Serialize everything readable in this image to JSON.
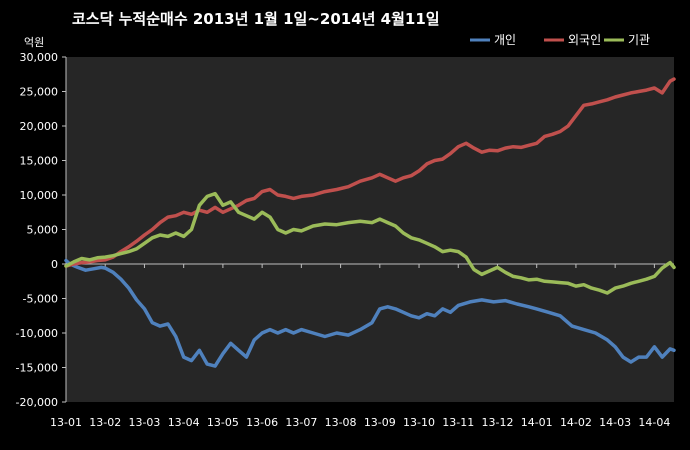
{
  "chart_data": {
    "type": "line",
    "title": "코스닥  누적순매수 2013년 1월 1일~2014년 4월11일",
    "ylabel": "억원",
    "xlabel": "",
    "ylim": [
      -20000,
      30000
    ],
    "yticks": [
      30000,
      25000,
      20000,
      15000,
      10000,
      5000,
      0,
      -5000,
      -10000,
      -15000,
      -20000
    ],
    "ytick_labels": [
      "30,000",
      "25,000",
      "20,000",
      "15,000",
      "10,000",
      "5,000",
      "0",
      "-5,000",
      "-10,000",
      "-15,000",
      "-20,000"
    ],
    "xlim": [
      0,
      15.5
    ],
    "xticks": [
      0,
      1,
      2,
      3,
      4,
      5,
      6,
      7,
      8,
      9,
      10,
      11,
      12,
      13,
      14,
      15
    ],
    "xtick_labels": [
      "13-01",
      "13-02",
      "13-03",
      "13-04",
      "13-05",
      "13-06",
      "13-07",
      "13-08",
      "13-09",
      "13-10",
      "13-11",
      "13-12",
      "14-01",
      "14-02",
      "14-03",
      "14-04"
    ],
    "grid": "none",
    "legend": "top-right",
    "background": "#262626",
    "series": [
      {
        "name": "개인",
        "color": "#4F81BD",
        "x": [
          0,
          0.1,
          0.3,
          0.5,
          0.7,
          0.9,
          1.0,
          1.2,
          1.4,
          1.6,
          1.8,
          2.0,
          2.2,
          2.4,
          2.6,
          2.8,
          3.0,
          3.2,
          3.4,
          3.6,
          3.8,
          4.0,
          4.2,
          4.4,
          4.6,
          4.8,
          5.0,
          5.2,
          5.4,
          5.6,
          5.8,
          6.0,
          6.3,
          6.6,
          6.9,
          7.2,
          7.5,
          7.8,
          8.0,
          8.2,
          8.4,
          8.6,
          8.8,
          9.0,
          9.2,
          9.4,
          9.6,
          9.8,
          10.0,
          10.3,
          10.6,
          10.9,
          11.2,
          11.5,
          11.8,
          12.0,
          12.3,
          12.6,
          12.9,
          13.2,
          13.5,
          13.8,
          14.0,
          14.2,
          14.4,
          14.6,
          14.8,
          15.0,
          15.2,
          15.4,
          15.5
        ],
        "values": [
          500,
          0,
          -500,
          -900,
          -700,
          -500,
          -600,
          -1200,
          -2200,
          -3500,
          -5200,
          -6500,
          -8500,
          -9000,
          -8700,
          -10500,
          -13500,
          -14000,
          -12500,
          -14500,
          -14800,
          -13000,
          -11500,
          -12500,
          -13500,
          -11000,
          -10000,
          -9500,
          -10000,
          -9500,
          -10000,
          -9500,
          -10000,
          -10500,
          -10000,
          -10300,
          -9500,
          -8500,
          -6500,
          -6200,
          -6500,
          -7000,
          -7500,
          -7800,
          -7200,
          -7500,
          -6500,
          -7000,
          -6000,
          -5500,
          -5200,
          -5500,
          -5300,
          -5800,
          -6200,
          -6500,
          -7000,
          -7500,
          -9000,
          -9500,
          -10000,
          -11000,
          -12000,
          -13500,
          -14200,
          -13500,
          -13500,
          -12000,
          -13500,
          -12300,
          -12500
        ]
      },
      {
        "name": "외국인",
        "color": "#C0504D",
        "x": [
          0,
          0.2,
          0.4,
          0.6,
          0.8,
          1.0,
          1.2,
          1.4,
          1.6,
          1.8,
          2.0,
          2.2,
          2.4,
          2.6,
          2.8,
          3.0,
          3.2,
          3.4,
          3.6,
          3.8,
          4.0,
          4.2,
          4.4,
          4.6,
          4.8,
          5.0,
          5.2,
          5.4,
          5.6,
          5.8,
          6.0,
          6.3,
          6.6,
          6.9,
          7.2,
          7.5,
          7.8,
          8.0,
          8.2,
          8.4,
          8.6,
          8.8,
          9.0,
          9.2,
          9.4,
          9.6,
          9.8,
          10.0,
          10.2,
          10.4,
          10.6,
          10.8,
          11.0,
          11.2,
          11.4,
          11.6,
          11.8,
          12.0,
          12.2,
          12.4,
          12.6,
          12.8,
          13.0,
          13.2,
          13.4,
          13.6,
          13.8,
          14.0,
          14.2,
          14.4,
          14.6,
          14.8,
          15.0,
          15.2,
          15.4,
          15.5
        ],
        "values": [
          -300,
          0,
          200,
          300,
          500,
          600,
          1000,
          1800,
          2500,
          3300,
          4200,
          5000,
          6000,
          6800,
          7000,
          7500,
          7200,
          7800,
          7500,
          8200,
          7500,
          8000,
          8500,
          9200,
          9500,
          10500,
          10800,
          10000,
          9800,
          9500,
          9800,
          10000,
          10500,
          10800,
          11200,
          12000,
          12500,
          13000,
          12500,
          12000,
          12500,
          12800,
          13500,
          14500,
          15000,
          15200,
          16000,
          17000,
          17500,
          16800,
          16200,
          16500,
          16400,
          16800,
          17000,
          16900,
          17200,
          17500,
          18500,
          18800,
          19200,
          20000,
          21500,
          23000,
          23200,
          23500,
          23800,
          24200,
          24500,
          24800,
          25000,
          25200,
          25500,
          24800,
          26500,
          26800
        ]
      },
      {
        "name": "기관",
        "color": "#9BBB59",
        "x": [
          0,
          0.2,
          0.4,
          0.6,
          0.8,
          1.0,
          1.2,
          1.4,
          1.6,
          1.8,
          2.0,
          2.2,
          2.4,
          2.6,
          2.8,
          3.0,
          3.2,
          3.4,
          3.6,
          3.8,
          4.0,
          4.2,
          4.4,
          4.6,
          4.8,
          5.0,
          5.2,
          5.4,
          5.6,
          5.8,
          6.0,
          6.3,
          6.6,
          6.9,
          7.2,
          7.5,
          7.8,
          8.0,
          8.2,
          8.4,
          8.6,
          8.8,
          9.0,
          9.2,
          9.4,
          9.6,
          9.8,
          10.0,
          10.2,
          10.4,
          10.6,
          10.8,
          11.0,
          11.2,
          11.4,
          11.6,
          11.8,
          12.0,
          12.2,
          12.4,
          12.6,
          12.8,
          13.0,
          13.2,
          13.4,
          13.6,
          13.8,
          14.0,
          14.2,
          14.4,
          14.6,
          14.8,
          15.0,
          15.2,
          15.4,
          15.5
        ],
        "values": [
          -300,
          300,
          800,
          600,
          900,
          1000,
          1200,
          1500,
          1800,
          2200,
          3000,
          3800,
          4200,
          4000,
          4500,
          4000,
          5000,
          8500,
          9800,
          10200,
          8500,
          9000,
          7500,
          7000,
          6500,
          7500,
          6800,
          5000,
          4500,
          5000,
          4800,
          5500,
          5800,
          5700,
          6000,
          6200,
          6000,
          6500,
          6000,
          5500,
          4500,
          3800,
          3500,
          3000,
          2500,
          1800,
          2000,
          1800,
          1000,
          -800,
          -1500,
          -1000,
          -500,
          -1200,
          -1800,
          -2000,
          -2300,
          -2200,
          -2500,
          -2600,
          -2700,
          -2800,
          -3200,
          -3000,
          -3500,
          -3800,
          -4200,
          -3500,
          -3200,
          -2800,
          -2500,
          -2200,
          -1800,
          -600,
          200,
          -500
        ]
      }
    ]
  }
}
